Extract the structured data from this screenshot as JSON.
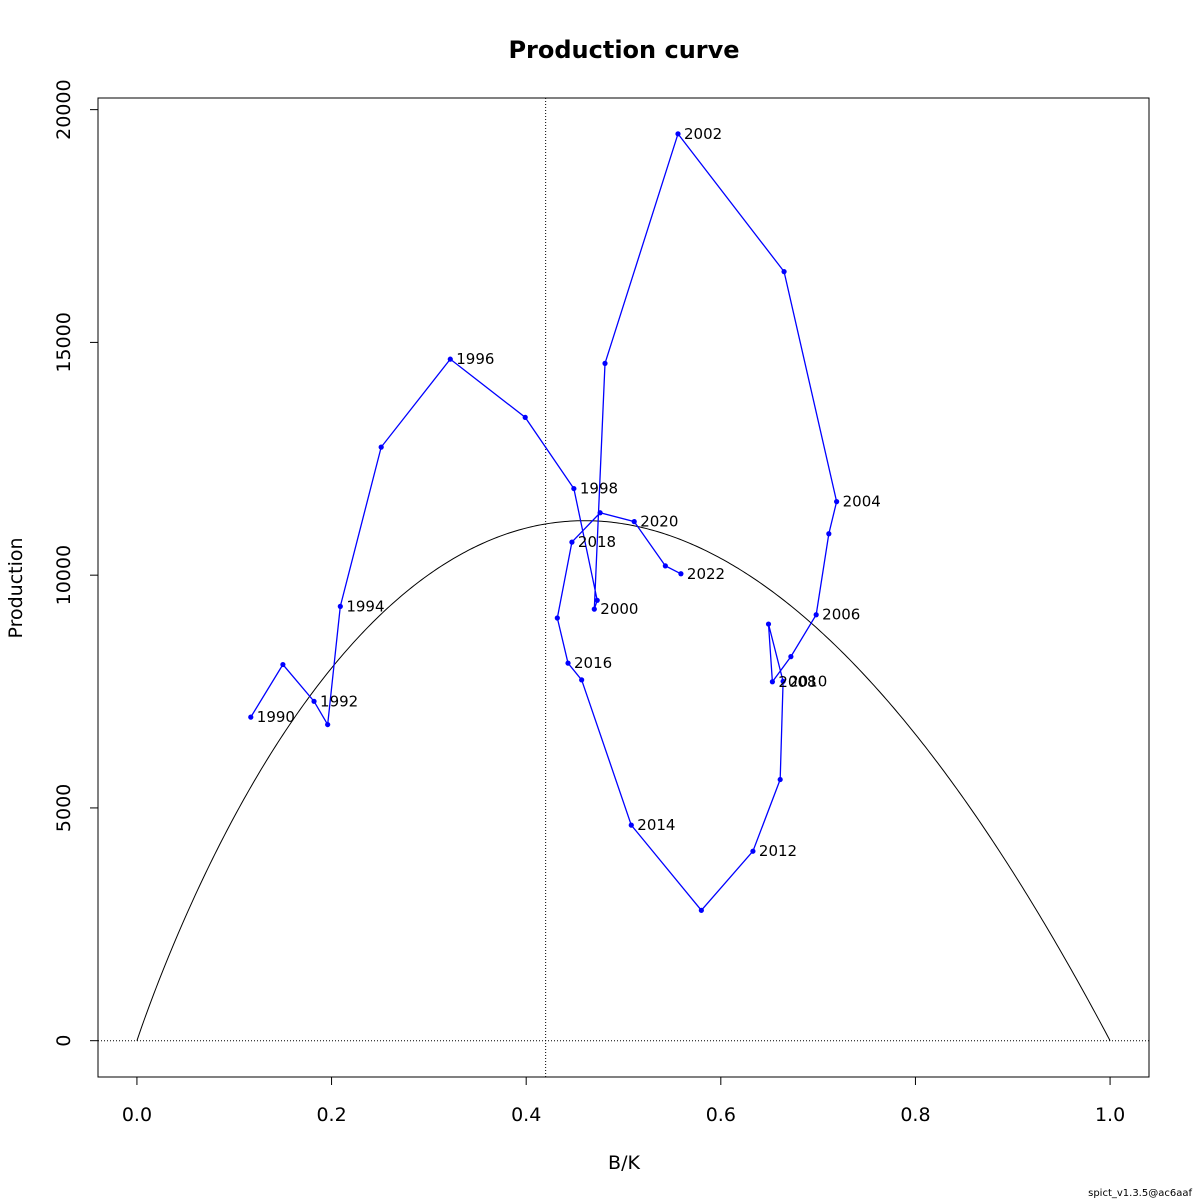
{
  "chart_data": {
    "type": "line",
    "title": "Production curve",
    "xlabel": "B/K",
    "ylabel": "Production",
    "xlim": [
      -0.04,
      1.04
    ],
    "ylim": [
      -780,
      20250
    ],
    "x_ticks": [
      0.0,
      0.2,
      0.4,
      0.6,
      0.8,
      1.0
    ],
    "x_tick_labels": [
      "0.0",
      "0.2",
      "0.4",
      "0.6",
      "0.8",
      "1.0"
    ],
    "y_ticks": [
      0,
      5000,
      10000,
      15000,
      20000
    ],
    "y_tick_labels": [
      "0",
      "5000",
      "10000",
      "15000",
      "20000"
    ],
    "grid": false,
    "reference_lines": {
      "vline_x": 0.42,
      "hline_y": 0,
      "style": "dotted"
    },
    "production_curve": {
      "color": "#000000",
      "peak_x": 0.42,
      "peak_y": 11100,
      "x_start": 0.0,
      "x_end": 1.0
    },
    "series": [
      {
        "color": "#0000ff",
        "points": [
          {
            "x": 0.117,
            "y": 6950,
            "label": "1990"
          },
          {
            "x": 0.15,
            "y": 8080,
            "label": ""
          },
          {
            "x": 0.182,
            "y": 7290,
            "label": "1992"
          },
          {
            "x": 0.196,
            "y": 6790,
            "label": ""
          },
          {
            "x": 0.209,
            "y": 9330,
            "label": "1994"
          },
          {
            "x": 0.251,
            "y": 12750,
            "label": ""
          },
          {
            "x": 0.322,
            "y": 14640,
            "label": "1996"
          },
          {
            "x": 0.399,
            "y": 13390,
            "label": ""
          },
          {
            "x": 0.449,
            "y": 11860,
            "label": "1998"
          },
          {
            "x": 0.473,
            "y": 9460,
            "label": ""
          },
          {
            "x": 0.47,
            "y": 9270,
            "label": "2000"
          },
          {
            "x": 0.481,
            "y": 14550,
            "label": ""
          },
          {
            "x": 0.556,
            "y": 19480,
            "label": "2002"
          },
          {
            "x": 0.665,
            "y": 16520,
            "label": ""
          },
          {
            "x": 0.719,
            "y": 11580,
            "label": "2004"
          },
          {
            "x": 0.711,
            "y": 10890,
            "label": ""
          },
          {
            "x": 0.698,
            "y": 9150,
            "label": "2006"
          },
          {
            "x": 0.672,
            "y": 8250,
            "label": ""
          },
          {
            "x": 0.653,
            "y": 7710,
            "label": "2008"
          },
          {
            "x": 0.649,
            "y": 8950,
            "label": ""
          },
          {
            "x": 0.664,
            "y": 7720,
            "label": "2010"
          },
          {
            "x": 0.661,
            "y": 5610,
            "label": ""
          },
          {
            "x": 0.633,
            "y": 4070,
            "label": "2012"
          },
          {
            "x": 0.58,
            "y": 2800,
            "label": ""
          },
          {
            "x": 0.508,
            "y": 4630,
            "label": "2014"
          },
          {
            "x": 0.457,
            "y": 7750,
            "label": ""
          },
          {
            "x": 0.443,
            "y": 8110,
            "label": "2016"
          },
          {
            "x": 0.432,
            "y": 9080,
            "label": ""
          },
          {
            "x": 0.447,
            "y": 10710,
            "label": "2018"
          },
          {
            "x": 0.476,
            "y": 11340,
            "label": ""
          },
          {
            "x": 0.511,
            "y": 11150,
            "label": "2020"
          },
          {
            "x": 0.543,
            "y": 10200,
            "label": ""
          },
          {
            "x": 0.559,
            "y": 10030,
            "label": "2022"
          }
        ]
      }
    ],
    "footer": "spict_v1.3.5@ac6aaf"
  }
}
